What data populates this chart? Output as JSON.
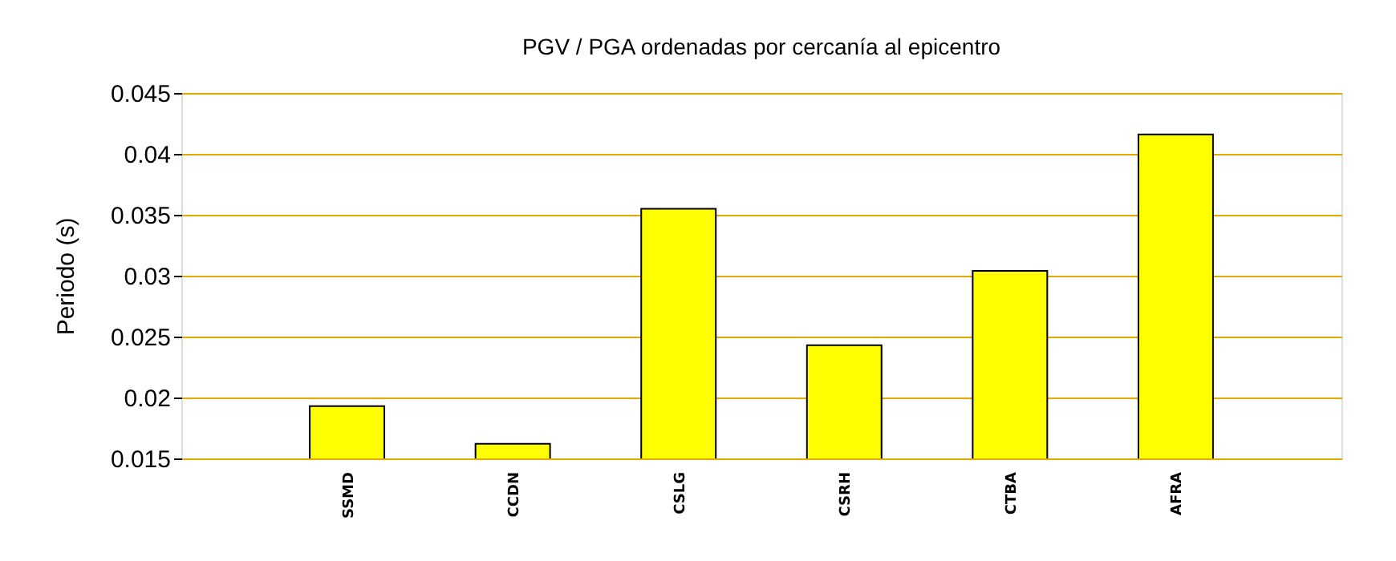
{
  "chart_data": {
    "type": "bar",
    "title": "PGV / PGA ordenadas por cercanía al epicentro",
    "ylabel": "Periodo (s)",
    "categories": [
      "SSMD",
      "CCDN",
      "CSLG",
      "CSRH",
      "CTBA",
      "AFRA"
    ],
    "values": [
      0.0193,
      0.0162,
      0.0355,
      0.0243,
      0.0304,
      0.0416
    ],
    "color": "#ffff00",
    "ylim": [
      0.015,
      0.045
    ],
    "yticks": [
      0.015,
      0.02,
      0.025,
      0.03,
      0.035,
      0.04,
      0.045
    ],
    "grid": "y"
  }
}
